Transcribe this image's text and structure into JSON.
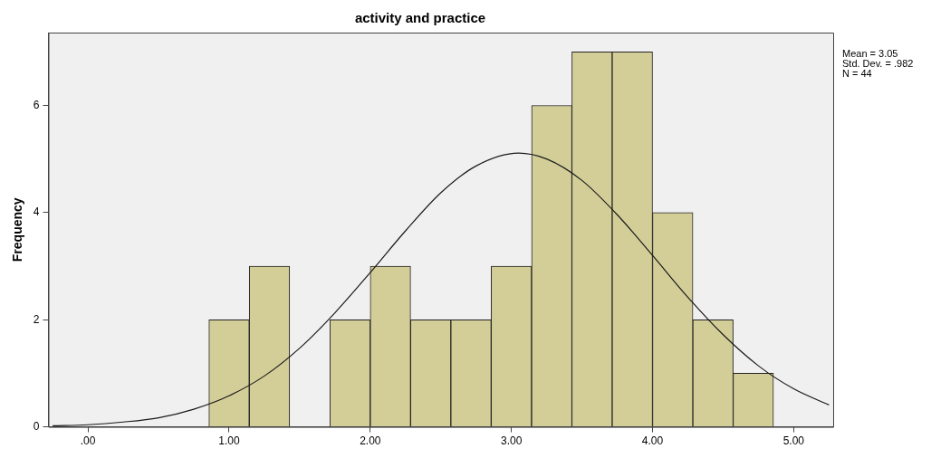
{
  "chart_data": {
    "type": "histogram",
    "title": "activity and practice",
    "ylabel": "Frequency",
    "bins": [
      0.857,
      1.143,
      1.429,
      1.714,
      2.0,
      2.286,
      2.571,
      2.857,
      3.143,
      3.429,
      3.714,
      4.0,
      4.286,
      4.571,
      4.857
    ],
    "values": [
      2,
      3,
      0,
      2,
      3,
      2,
      2,
      3,
      6,
      7,
      7,
      4,
      2,
      1
    ],
    "color": "#d3ce98",
    "series": [
      {
        "type": "line",
        "color": "#1a1a1a",
        "x": [
          -0.25,
          0,
          0.25,
          0.5,
          0.75,
          1.0,
          1.25,
          1.5,
          1.75,
          2.0,
          2.25,
          2.5,
          2.75,
          3.05,
          3.25,
          3.5,
          3.75,
          4.0,
          4.25,
          4.5,
          4.75,
          5.0,
          5.25
        ],
        "values": [
          0.02,
          0.04,
          0.09,
          0.17,
          0.33,
          0.58,
          0.95,
          1.47,
          2.13,
          2.88,
          3.66,
          4.37,
          4.87,
          5.11,
          5.0,
          4.6,
          3.96,
          3.2,
          2.42,
          1.72,
          1.14,
          0.71,
          0.41
        ]
      }
    ],
    "xlim": [
      -0.28,
      5.28
    ],
    "xticks": [
      {
        "value": 0,
        "label": ".00"
      },
      {
        "value": 1,
        "label": "1.00"
      },
      {
        "value": 2,
        "label": "2.00"
      },
      {
        "value": 3,
        "label": "3.00"
      },
      {
        "value": 4,
        "label": "4.00"
      },
      {
        "value": 5,
        "label": "5.00"
      }
    ],
    "ylim": [
      0,
      7.36
    ],
    "yticks": [
      0,
      2,
      4,
      6
    ],
    "annotations": [
      "Mean = 3.05",
      "Std. Dev. = .982",
      "N = 44"
    ],
    "grid": false,
    "legend": false,
    "marker": "none",
    "line_style": "solid"
  }
}
